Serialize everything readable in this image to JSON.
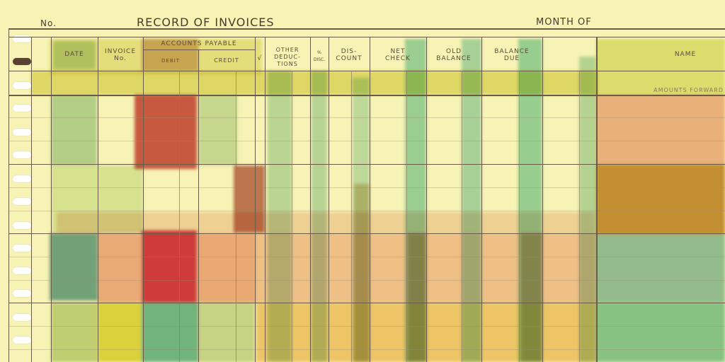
{
  "header": {
    "no_label": "No.",
    "title": "RECORD OF INVOICES",
    "month_label": "MONTH OF"
  },
  "columns": {
    "date": "DATE",
    "invoice_no": [
      "INVOICE",
      "No."
    ],
    "accounts_payable": "ACCOUNTS PAYABLE",
    "debit": "DEBIT",
    "credit": "CREDIT",
    "check_mark": "√",
    "other_deductions": [
      "OTHER",
      "DEDUC-",
      "TIONS"
    ],
    "pct_disc": [
      "%",
      "DISC."
    ],
    "discount": [
      "DIS-",
      "COUNT"
    ],
    "net_check": [
      "NET",
      "CHECK"
    ],
    "old_balance": [
      "OLD",
      "BALANCE"
    ],
    "balance_due": [
      "BALANCE",
      "DUE"
    ],
    "name": "NAME"
  },
  "amounts_forward": "AMOUNTS FORWARD"
}
